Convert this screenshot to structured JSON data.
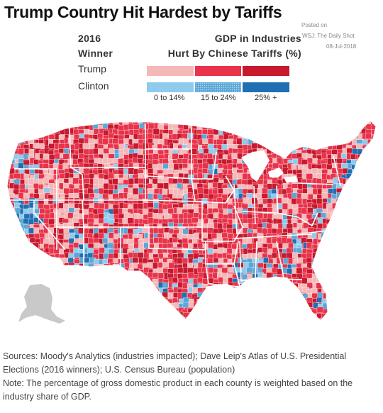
{
  "title": "Trump Country Hit Hardest by Tariffs",
  "posted": {
    "line1": "Posted on",
    "line2": "WSJ: The Daily Shot",
    "line3": "08-Jul-2018"
  },
  "legend": {
    "winner_header_1": "2016",
    "winner_header_2": "Winner",
    "gdp_header_1": "GDP in Industries",
    "gdp_header_2": "Hurt By Chinese Tariffs (%)",
    "rows": [
      {
        "label": "Trump",
        "colors": [
          "#f5b8b8",
          "#e8334a",
          "#c8192e"
        ]
      },
      {
        "label": "Clinton",
        "colors": [
          "#8ecbec",
          "#5aa7d8",
          "#1f6fb2"
        ]
      }
    ],
    "bins": [
      "0 to 14%",
      "15 to 24%",
      "25% +"
    ]
  },
  "sources": [
    "Sources: Moody's Analytics (industries impacted); Dave Leip's Atlas of U.S. Presidential",
    "Elections (2016 winners); U.S. Census Bureau (population)",
    "Note: The percentage of gross domestic product in each county is weighted based on the",
    "industry share of GDP."
  ],
  "map": {
    "trump_colors": [
      "#f5b8b8",
      "#e8334a",
      "#c8192e"
    ],
    "clinton_colors": [
      "#8ecbec",
      "#5aa7d8",
      "#1f6fb2"
    ],
    "alaska_color": "#c9c9c9",
    "border_color": "#ffffff"
  }
}
